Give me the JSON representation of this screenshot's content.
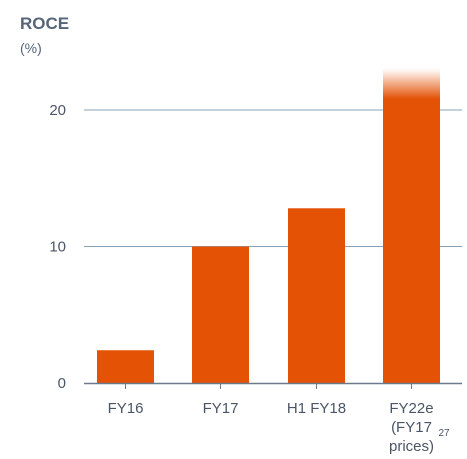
{
  "chart_data": {
    "type": "bar",
    "title": "ROCE",
    "ylabel": "(%)",
    "categories": [
      "FY16",
      "FY17",
      "H1 FY18",
      "FY22e"
    ],
    "category_lines": [
      [
        "FY16"
      ],
      [
        "FY17"
      ],
      [
        "H1 FY18"
      ],
      [
        "FY22e",
        "(FY17",
        "prices)"
      ]
    ],
    "footnote_marker": "27",
    "values": [
      2.4,
      10.0,
      12.8,
      23.0
    ],
    "yticks": [
      "0",
      "10",
      "20"
    ],
    "ylim": [
      0,
      23
    ],
    "grid": true,
    "bar_color": "#e35205",
    "last_bar_fades_at_top": true
  }
}
